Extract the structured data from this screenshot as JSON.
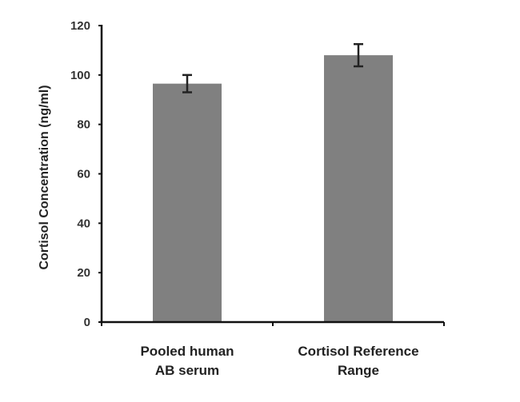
{
  "chart_data": {
    "type": "bar",
    "title": "",
    "xlabel": "",
    "ylabel": "Cortisol Concentration (ng/ml)",
    "categories": [
      "Pooled human AB serum",
      "Cortisol Reference Range"
    ],
    "category_lines": [
      [
        "Pooled human",
        "AB serum"
      ],
      [
        "Cortisol Reference",
        "Range"
      ]
    ],
    "values": [
      96.5,
      108
    ],
    "errors": [
      3.5,
      4.5
    ],
    "ylim": [
      0,
      120
    ],
    "yticks": [
      0,
      20,
      40,
      60,
      80,
      100,
      120
    ],
    "grid": false,
    "legend": null,
    "bar_color": "#808080",
    "axis_color": "#111111"
  }
}
